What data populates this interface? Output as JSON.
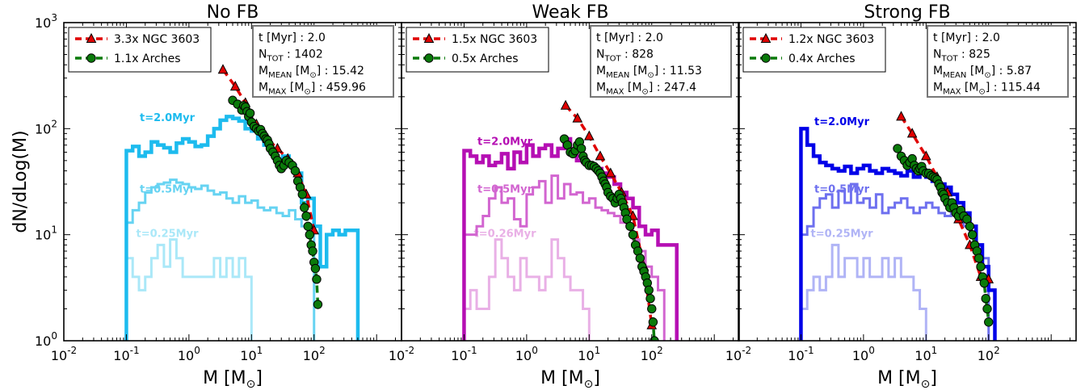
{
  "chart_data": {
    "type": "line",
    "shared": {
      "ylabel": "dN/dLog(M)",
      "xlabel": "M [M",
      "xlabel_sym": "⊙",
      "xlabel_close": "]",
      "xscale": "log",
      "yscale": "log",
      "xlim": [
        0.01,
        2500
      ],
      "ylim": [
        1,
        1000
      ],
      "xticks": [
        0.01,
        0.1,
        1,
        10,
        100
      ],
      "yticks": [
        1,
        10,
        100,
        1000
      ],
      "legend_placement": "top-left",
      "info_placement": "top-right",
      "marker_colors": {
        "ngc": "#e00000",
        "arches": "#0a7a0a"
      }
    },
    "panels": [
      {
        "title": "No FB",
        "legend": [
          "3.3x NGC 3603",
          "1.1x Arches"
        ],
        "info": [
          "t [Myr] : 2.0",
          "1402",
          "15.42",
          "459.96"
        ],
        "series": [
          {
            "name": "t=0.25Myr",
            "color": "#aae8f8",
            "label_at": [
              0.45,
              9.5
            ],
            "edges": [
              0.1,
              0.126,
              0.159,
              0.2,
              0.251,
              0.316,
              0.398,
              0.501,
              0.631,
              0.794,
              1,
              1.259,
              1.585,
              1.995,
              2.512,
              3.162,
              3.981,
              5.012,
              6.31,
              7.943,
              10
            ],
            "values": [
              6,
              4,
              3,
              4,
              6,
              8,
              5,
              9,
              6,
              4,
              4,
              4,
              4,
              4,
              6,
              4,
              6,
              4,
              6,
              4
            ]
          },
          {
            "name": "t=0.5Myr",
            "color": "#66d3f2",
            "label_at": [
              0.45,
              25
            ],
            "edges": [
              0.1,
              0.126,
              0.159,
              0.2,
              0.251,
              0.316,
              0.398,
              0.501,
              0.631,
              0.794,
              1,
              1.259,
              1.585,
              1.995,
              2.512,
              3.162,
              3.981,
              5.012,
              6.31,
              7.943,
              10,
              12.59,
              15.85,
              19.95,
              25.12,
              31.62,
              39.81,
              50.12,
              63.1,
              79.43,
              100
            ],
            "values": [
              13,
              17,
              20,
              25,
              28,
              30,
              31,
              33,
              31,
              30,
              28,
              27,
              29,
              26,
              24,
              25,
              22,
              20,
              23,
              20,
              21,
              18,
              17,
              18,
              16,
              15,
              17,
              14,
              12,
              10
            ]
          },
          {
            "name": "t=2.0Myr",
            "color": "#1dbbee",
            "label_at": [
              0.45,
              118
            ],
            "edges": [
              0.1,
              0.126,
              0.159,
              0.2,
              0.251,
              0.316,
              0.398,
              0.501,
              0.631,
              0.794,
              1,
              1.259,
              1.585,
              1.995,
              2.512,
              3.162,
              3.981,
              5.012,
              6.31,
              7.943,
              10,
              12.59,
              15.85,
              19.95,
              25.12,
              31.62,
              39.81,
              50.12,
              63.1,
              79.43,
              100,
              125.9,
              158.5,
              199.5,
              251.2,
              316.2,
              398.1,
              501.2
            ],
            "values": [
              62,
              68,
              55,
              60,
              75,
              70,
              66,
              60,
              73,
              80,
              75,
              68,
              70,
              85,
              100,
              120,
              130,
              125,
              118,
              100,
              95,
              80,
              70,
              60,
              50,
              55,
              45,
              38,
              20,
              22,
              12,
              5,
              10,
              11,
              10,
              11,
              11
            ]
          }
        ],
        "ngc": {
          "x": [
            3.5,
            5.5,
            8,
            12,
            18,
            26,
            38,
            55,
            75,
            100
          ],
          "y": [
            360,
            250,
            175,
            110,
            80,
            65,
            52,
            38,
            24,
            11
          ]
        },
        "arches": {
          "x": [
            5,
            6,
            7,
            7.5,
            8,
            8.5,
            9,
            9.5,
            10,
            11,
            12,
            13,
            14,
            15,
            16,
            17,
            18,
            19,
            20,
            22,
            24,
            26,
            28,
            30,
            33,
            36,
            40,
            45,
            50,
            55,
            60,
            65,
            70,
            75,
            80,
            85,
            90,
            95,
            100,
            105,
            110,
            115
          ],
          "y": [
            185,
            170,
            150,
            165,
            160,
            145,
            130,
            140,
            115,
            105,
            100,
            95,
            98,
            90,
            85,
            80,
            78,
            72,
            65,
            60,
            55,
            50,
            45,
            42,
            45,
            50,
            48,
            45,
            40,
            32,
            28,
            24,
            18,
            15,
            12,
            10,
            8,
            7,
            5.5,
            4.8,
            3.8,
            2.2
          ]
        }
      },
      {
        "title": "Weak FB",
        "legend": [
          "1.5x NGC 3603",
          "0.5x Arches"
        ],
        "info": [
          "t [Myr] : 2.0",
          "828",
          "11.53",
          "247.4"
        ],
        "series": [
          {
            "name": "t=0.26Myr",
            "color": "#e9b0e6",
            "label_at": [
              0.45,
              9.5
            ],
            "edges": [
              0.1,
              0.126,
              0.159,
              0.2,
              0.251,
              0.316,
              0.398,
              0.501,
              0.631,
              0.794,
              1,
              1.259,
              1.585,
              1.995,
              2.512,
              3.162,
              3.981,
              5.012,
              6.31,
              7.943,
              10
            ],
            "values": [
              2,
              3,
              2,
              2,
              4,
              9,
              6,
              4,
              3,
              6,
              4,
              4,
              3,
              4,
              9,
              6,
              4,
              3,
              3,
              2
            ]
          },
          {
            "name": "t=0.5Myr",
            "color": "#d265d0",
            "label_at": [
              0.45,
              25
            ],
            "edges": [
              0.1,
              0.126,
              0.159,
              0.2,
              0.251,
              0.316,
              0.398,
              0.501,
              0.631,
              0.794,
              1,
              1.259,
              1.585,
              1.995,
              2.512,
              3.162,
              3.981,
              5.012,
              6.31,
              7.943,
              10,
              12.59,
              15.85,
              19.95,
              25.12,
              31.62,
              39.81,
              50.12,
              63.1,
              79.43,
              100,
              125.9,
              158.5
            ],
            "values": [
              10,
              10,
              12,
              15,
              22,
              28,
              20,
              22,
              14,
              12,
              24,
              28,
              32,
              20,
              36,
              22,
              30,
              24,
              25,
              20,
              22,
              18,
              17,
              16,
              15,
              13,
              12,
              9,
              7,
              5,
              4,
              3
            ]
          },
          {
            "name": "t=2.0Myr",
            "color": "#b50fb3",
            "label_at": [
              0.45,
              70
            ],
            "edges": [
              0.1,
              0.126,
              0.159,
              0.2,
              0.251,
              0.316,
              0.398,
              0.501,
              0.631,
              0.794,
              1,
              1.259,
              1.585,
              1.995,
              2.512,
              3.162,
              3.981,
              5.012,
              6.31,
              7.943,
              10,
              12.59,
              15.85,
              19.95,
              25.12,
              31.62,
              39.81,
              50.12,
              63.1,
              79.43,
              100,
              125.9,
              158.5,
              199.5,
              251.2
            ],
            "values": [
              62,
              55,
              48,
              55,
              45,
              48,
              58,
              42,
              60,
              48,
              70,
              55,
              65,
              70,
              55,
              65,
              80,
              60,
              50,
              48,
              45,
              42,
              38,
              35,
              30,
              25,
              22,
              18,
              12,
              10,
              11,
              8,
              8,
              8
            ]
          }
        ],
        "ngc": {
          "x": [
            4.2,
            6.5,
            10,
            15,
            22,
            33,
            50,
            75,
            100
          ],
          "y": [
            165,
            125,
            85,
            55,
            38,
            25,
            15,
            5,
            1.4
          ]
        },
        "arches": {
          "x": [
            4,
            4.5,
            5,
            5.5,
            6,
            6.5,
            7,
            7.5,
            8,
            8.5,
            9,
            10,
            11,
            12,
            13,
            14,
            15,
            16,
            17,
            18,
            19,
            20,
            22,
            24,
            26,
            28,
            30,
            32,
            34,
            36,
            38,
            40,
            45,
            50,
            55,
            60,
            65,
            70,
            75,
            80,
            85,
            90,
            95,
            100,
            105,
            110
          ],
          "y": [
            80,
            70,
            60,
            58,
            62,
            70,
            75,
            65,
            55,
            50,
            48,
            45,
            45,
            44,
            42,
            40,
            38,
            35,
            32,
            30,
            28,
            25,
            23,
            22,
            20,
            22,
            24,
            22,
            20,
            18,
            16,
            14,
            12,
            10,
            8,
            7,
            6,
            5,
            4.5,
            4,
            3.5,
            3,
            2.5,
            2,
            1.5,
            1
          ]
        }
      },
      {
        "title": "Strong FB",
        "legend": [
          "1.2x NGC 3603",
          "0.4x Arches"
        ],
        "info": [
          "t [Myr] : 2.0",
          "825",
          "5.87",
          "115.44"
        ],
        "series": [
          {
            "name": "t=0.25Myr",
            "color": "#b0b4f6",
            "label_at": [
              0.45,
              9.5
            ],
            "edges": [
              0.1,
              0.126,
              0.159,
              0.2,
              0.251,
              0.316,
              0.398,
              0.501,
              0.631,
              0.794,
              1,
              1.259,
              1.585,
              1.995,
              2.512,
              3.162,
              3.981,
              5.012,
              6.31,
              7.943,
              10
            ],
            "values": [
              2,
              3,
              4,
              3,
              4,
              8,
              4,
              6,
              6,
              4,
              6,
              4,
              4,
              6,
              4,
              6,
              4,
              4,
              3,
              2
            ]
          },
          {
            "name": "t=0.5Myr",
            "color": "#6e70ef",
            "label_at": [
              0.45,
              25
            ],
            "edges": [
              0.1,
              0.126,
              0.159,
              0.2,
              0.251,
              0.316,
              0.398,
              0.501,
              0.631,
              0.794,
              1,
              1.259,
              1.585,
              1.995,
              2.512,
              3.162,
              3.981,
              5.012,
              6.31,
              7.943,
              10,
              12.59,
              15.85,
              19.95,
              25.12,
              31.62,
              39.81,
              50.12,
              63.1,
              79.43,
              100
            ],
            "values": [
              10,
              12,
              18,
              22,
              24,
              18,
              26,
              20,
              30,
              20,
              22,
              18,
              24,
              16,
              18,
              20,
              22,
              18,
              16,
              18,
              20,
              18,
              16,
              15,
              16,
              14,
              12,
              10,
              8,
              6
            ]
          },
          {
            "name": "t=2.0Myr",
            "color": "#0000e8",
            "label_at": [
              0.45,
              108
            ],
            "edges": [
              0.1,
              0.126,
              0.159,
              0.2,
              0.251,
              0.316,
              0.398,
              0.501,
              0.631,
              0.794,
              1,
              1.259,
              1.585,
              1.995,
              2.512,
              3.162,
              3.981,
              5.012,
              6.31,
              7.943,
              10,
              12.59,
              15.85,
              19.95,
              25.12,
              31.62,
              39.81,
              50.12,
              63.1,
              79.43,
              100,
              125.9
            ],
            "values": [
              100,
              70,
              55,
              48,
              45,
              42,
              40,
              44,
              38,
              42,
              45,
              40,
              38,
              42,
              40,
              38,
              36,
              40,
              35,
              38,
              35,
              32,
              30,
              28,
              24,
              20,
              16,
              12,
              8,
              5,
              3
            ]
          }
        ],
        "ngc": {
          "x": [
            4,
            6,
            10,
            15,
            22,
            33,
            50,
            75,
            100
          ],
          "y": [
            130,
            90,
            55,
            35,
            25,
            14,
            8,
            4,
            3.8
          ]
        },
        "arches": {
          "x": [
            3.5,
            4,
            4.5,
            5,
            5.5,
            6,
            6.5,
            7,
            7.5,
            8,
            8.5,
            9,
            10,
            11,
            12,
            13,
            14,
            15,
            16,
            17,
            18,
            19,
            20,
            22,
            24,
            26,
            28,
            30,
            33,
            36,
            40,
            45,
            50,
            55,
            60,
            65,
            70,
            75,
            80,
            85,
            90,
            95,
            100
          ],
          "y": [
            65,
            55,
            50,
            45,
            48,
            52,
            45,
            42,
            40,
            42,
            44,
            40,
            38,
            38,
            36,
            35,
            34,
            33,
            30,
            28,
            25,
            24,
            22,
            20,
            18,
            20,
            18,
            16,
            15,
            17,
            15,
            14,
            12,
            10,
            8,
            7,
            6,
            5,
            4,
            3.5,
            2.5,
            2,
            1.5
          ]
        }
      }
    ]
  }
}
